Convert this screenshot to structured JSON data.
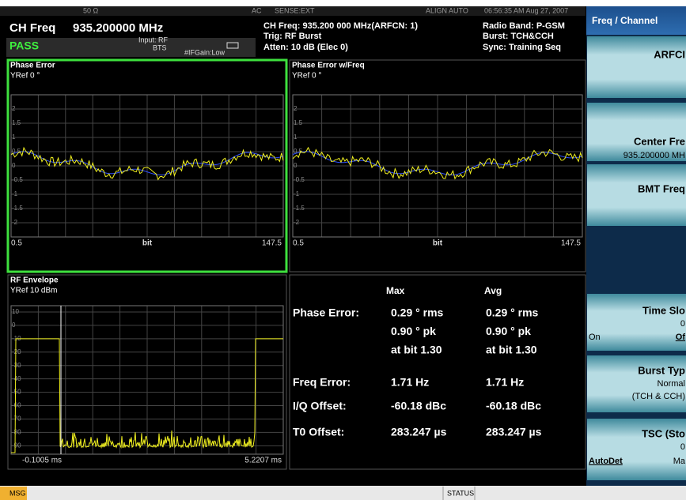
{
  "header": {
    "rf_in": "50 Ω",
    "coupling": "AC",
    "sense": "SENSE:EXT",
    "align": "ALIGN AUTO",
    "datetime": "06:56:35 AM Aug 27, 2007",
    "measure": "CH Freq",
    "freq": "935.200000 MHz",
    "status": "PASS",
    "input": "Input: RF",
    "input_mode": "BTS",
    "ifgain": "#IFGain:Low",
    "line1": "CH Freq: 935.200 000 MHz(ARFCN: 1)",
    "line2": "Trig: RF Burst",
    "line3": "Atten: 10 dB (Elec 0)",
    "band": "Radio Band: P-GSM",
    "burst": "Burst: TCH&CCH",
    "sync": "Sync: Training Seq"
  },
  "plots": [
    {
      "title": "Phase Error",
      "yref": "YRef 0 °",
      "yticks": [
        "2",
        "1.5",
        "1",
        "0.5",
        "0",
        "-0.5",
        "-1",
        "-1.5",
        "-2"
      ],
      "x_start": "0.5",
      "x_label": "bit",
      "x_end": "147.5"
    },
    {
      "title": "Phase Error w/Freq",
      "yref": "YRef 0 °",
      "yticks": [
        "2",
        "1.5",
        "1",
        "0.5",
        "0",
        "-0.5",
        "-1",
        "-1.5",
        "-2"
      ],
      "x_start": "0.5",
      "x_label": "bit",
      "x_end": "147.5"
    },
    {
      "title": "RF Envelope",
      "yref": "YRef 10 dBm",
      "yticks": [
        "10",
        "0",
        "-10",
        "-20",
        "-30",
        "-40",
        "-50",
        "-60",
        "-70",
        "-80",
        "-90"
      ],
      "x_start": "-0.1005 ms",
      "x_end": "5.2207 ms"
    }
  ],
  "results": {
    "headers": [
      "Max",
      "Avg"
    ],
    "rows": [
      {
        "label": "Phase Error:",
        "max": [
          "0.29 ° rms",
          "0.90 ° pk",
          "at bit  1.30"
        ],
        "avg": [
          "0.29 ° rms",
          "0.90 ° pk",
          "at bit  1.30"
        ]
      },
      {
        "label": "Freq Error:",
        "max": [
          "1.71 Hz"
        ],
        "avg": [
          "1.71 Hz"
        ]
      },
      {
        "label": "I/Q Offset:",
        "max": [
          "-60.18 dBc"
        ],
        "avg": [
          "-60.18 dBc"
        ]
      },
      {
        "label": "T0 Offset:",
        "max": [
          "283.247 µs"
        ],
        "avg": [
          "283.247 µs"
        ]
      }
    ]
  },
  "softkeys": {
    "title": "Freq / Channel",
    "keys": [
      {
        "label": "ARFCI"
      },
      {
        "label": "Center Fre",
        "value": "935.200000 MH"
      },
      {
        "label": "BMT Freq"
      },
      {
        "label": "Time Slo",
        "value": "0",
        "left": "On",
        "right": "Of"
      },
      {
        "label": "Burst Typ",
        "value": "Normal",
        "extra": "(TCH & CCH)"
      },
      {
        "label": "TSC (Sto",
        "value": "0",
        "left": "AutoDet",
        "right": "Ma"
      }
    ]
  },
  "footer": {
    "msg": "MSG",
    "status": "STATUS"
  }
}
